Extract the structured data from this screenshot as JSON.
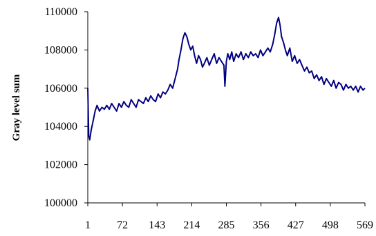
{
  "chart_data": {
    "type": "line",
    "title": "",
    "xlabel": "",
    "ylabel": "Gray level sum",
    "xlim": [
      1,
      569
    ],
    "ylim": [
      100000,
      110000
    ],
    "grid": false,
    "legend": "none",
    "line_color": "#000080",
    "x_ticks": [
      1,
      72,
      143,
      214,
      285,
      356,
      427,
      498,
      569
    ],
    "y_ticks": [
      100000,
      102000,
      104000,
      106000,
      108000,
      110000
    ],
    "x_tick_labels": [
      "1",
      "72",
      "143",
      "214",
      "285",
      "356",
      "427",
      "498",
      "569"
    ],
    "y_tick_labels": [
      "100000",
      "102000",
      "104000",
      "106000",
      "108000",
      "110000"
    ],
    "series": [
      {
        "x": [
          1,
          3,
          5,
          8,
          12,
          16,
          20,
          25,
          30,
          35,
          40,
          45,
          50,
          55,
          60,
          65,
          70,
          75,
          80,
          85,
          90,
          95,
          100,
          105,
          110,
          115,
          120,
          125,
          130,
          135,
          140,
          145,
          150,
          155,
          160,
          165,
          170,
          175,
          180,
          185,
          188,
          192,
          196,
          200,
          204,
          208,
          212,
          216,
          220,
          224,
          228,
          232,
          236,
          240,
          245,
          250,
          255,
          260,
          265,
          270,
          275,
          280,
          282,
          285,
          288,
          292,
          296,
          300,
          305,
          310,
          315,
          320,
          325,
          330,
          335,
          340,
          345,
          350,
          355,
          360,
          365,
          370,
          375,
          380,
          384,
          388,
          392,
          395,
          398,
          402,
          406,
          410,
          415,
          420,
          425,
          430,
          435,
          440,
          445,
          450,
          455,
          460,
          465,
          470,
          475,
          480,
          485,
          490,
          495,
          500,
          505,
          510,
          515,
          520,
          525,
          530,
          535,
          540,
          545,
          550,
          555,
          560,
          565,
          569
        ],
        "y": [
          106000,
          103500,
          103300,
          103800,
          104300,
          104800,
          105100,
          104800,
          105000,
          104900,
          105100,
          104900,
          105200,
          105000,
          104800,
          105200,
          105000,
          105300,
          105100,
          105000,
          105400,
          105200,
          105000,
          105400,
          105300,
          105200,
          105500,
          105300,
          105600,
          105400,
          105300,
          105700,
          105500,
          105800,
          105700,
          105900,
          106200,
          106000,
          106500,
          107000,
          107500,
          108000,
          108600,
          108900,
          108700,
          108300,
          108000,
          108200,
          107700,
          107300,
          107700,
          107500,
          107100,
          107300,
          107600,
          107200,
          107500,
          107800,
          107300,
          107600,
          107400,
          107200,
          106100,
          107400,
          107800,
          107500,
          107900,
          107400,
          107800,
          107600,
          107900,
          107500,
          107800,
          107600,
          107900,
          107700,
          107800,
          107600,
          108000,
          107700,
          107900,
          108100,
          107900,
          108300,
          108800,
          109400,
          109700,
          109300,
          108700,
          108400,
          108000,
          107700,
          108100,
          107400,
          107700,
          107300,
          107500,
          107200,
          106900,
          107100,
          106800,
          106900,
          106500,
          106700,
          106400,
          106600,
          106200,
          106500,
          106300,
          106100,
          106400,
          106000,
          106300,
          106200,
          105900,
          106200,
          106000,
          106100,
          105900,
          106100,
          105800,
          106100,
          105900,
          106000
        ]
      }
    ]
  }
}
